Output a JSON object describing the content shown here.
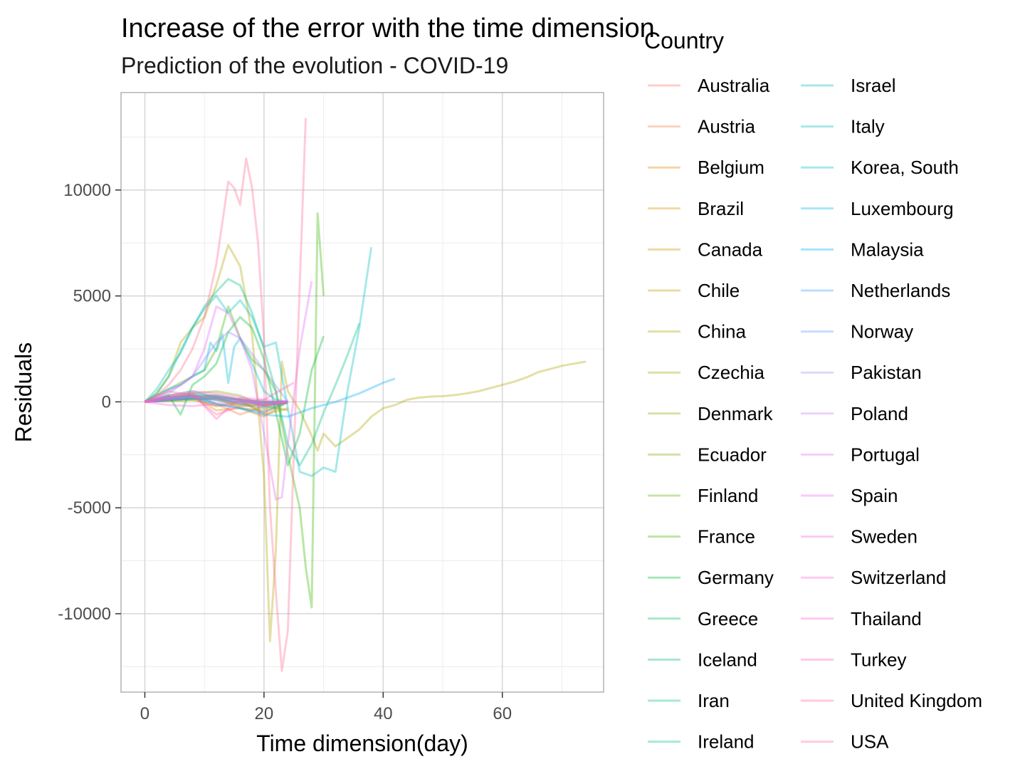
{
  "chart_data": {
    "type": "line",
    "title": "Increase of the error with the time dimension",
    "subtitle": "Prediction of the evolution - COVID-19",
    "xlabel": "Time dimension(day)",
    "ylabel": "Residuals",
    "xlim": [
      -4,
      77
    ],
    "ylim": [
      -13700,
      14600
    ],
    "x_ticks": [
      0,
      20,
      40,
      60
    ],
    "y_ticks": [
      10000,
      5000,
      0,
      -5000,
      -10000
    ],
    "y_tick_labels": [
      "10000",
      "5000",
      "0",
      "-5000",
      "-10000"
    ],
    "grid": true,
    "legend_title": "Country",
    "legend_position": "right",
    "line_opacity": 0.35,
    "series": [
      {
        "name": "Australia",
        "color": "#F8766D",
        "x": [
          0,
          4,
          8,
          12,
          16,
          20,
          24
        ],
        "y": [
          0,
          100,
          200,
          -200,
          -100,
          0,
          0
        ]
      },
      {
        "name": "Austria",
        "color": "#EF7F49",
        "x": [
          0,
          4,
          8,
          12,
          16,
          20,
          24
        ],
        "y": [
          0,
          300,
          400,
          -100,
          -600,
          -200,
          0
        ]
      },
      {
        "name": "Belgium",
        "color": "#E58700",
        "x": [
          0,
          4,
          8,
          12,
          16,
          20,
          24
        ],
        "y": [
          0,
          200,
          300,
          -400,
          -300,
          -700,
          0
        ]
      },
      {
        "name": "Brazil",
        "color": "#DA8F00",
        "x": [
          0,
          4,
          8,
          12,
          16,
          20,
          24
        ],
        "y": [
          0,
          100,
          200,
          300,
          100,
          -600,
          -300
        ]
      },
      {
        "name": "Canada",
        "color": "#C99800",
        "x": [
          0,
          4,
          8,
          12,
          16,
          20,
          24
        ],
        "y": [
          0,
          150,
          250,
          200,
          -300,
          -400,
          0
        ]
      },
      {
        "name": "Chile",
        "color": "#B79F00",
        "x": [
          0,
          4,
          8,
          12,
          16,
          20,
          24
        ],
        "y": [
          0,
          50,
          100,
          -200,
          0,
          -500,
          0
        ]
      },
      {
        "name": "China",
        "color": "#B2A400",
        "x": [
          0,
          2,
          4,
          6,
          8,
          10,
          12,
          14,
          16,
          18,
          20,
          21,
          22,
          23,
          24,
          26,
          28,
          29,
          30,
          32,
          34,
          36,
          38,
          40,
          42,
          44,
          46,
          48,
          50,
          52,
          54,
          56,
          58,
          60,
          62,
          64,
          66,
          68,
          70,
          72,
          74
        ],
        "y": [
          0,
          400,
          1200,
          2800,
          3500,
          4000,
          5500,
          7400,
          6400,
          3200,
          -3500,
          -11300,
          -7000,
          1900,
          500,
          -400,
          -1600,
          -2300,
          -1500,
          -2100,
          -1700,
          -1300,
          -700,
          -300,
          -150,
          100,
          200,
          250,
          270,
          320,
          400,
          500,
          650,
          800,
          950,
          1150,
          1400,
          1550,
          1700,
          1800,
          1900
        ]
      },
      {
        "name": "Czechia",
        "color": "#A3A500",
        "x": [
          0,
          4,
          8,
          12,
          16,
          20,
          24
        ],
        "y": [
          0,
          100,
          250,
          100,
          -200,
          -100,
          0
        ]
      },
      {
        "name": "Denmark",
        "color": "#8FAA00",
        "x": [
          0,
          4,
          8,
          12,
          16,
          20,
          24
        ],
        "y": [
          0,
          80,
          150,
          200,
          -100,
          -150,
          0
        ]
      },
      {
        "name": "Ecuador",
        "color": "#7CAE00",
        "x": [
          0,
          4,
          8,
          12,
          16,
          20,
          24
        ],
        "y": [
          0,
          200,
          400,
          500,
          300,
          -200,
          -400
        ]
      },
      {
        "name": "Finland",
        "color": "#5EB300",
        "x": [
          0,
          4,
          8,
          12,
          16,
          20,
          24
        ],
        "y": [
          0,
          50,
          100,
          150,
          100,
          0,
          0
        ]
      },
      {
        "name": "France",
        "color": "#39B600",
        "x": [
          0,
          2,
          4,
          6,
          8,
          10,
          12,
          14,
          16,
          18,
          20,
          22,
          24,
          26,
          27,
          28,
          29,
          30
        ],
        "y": [
          0,
          300,
          600,
          900,
          1200,
          1500,
          2500,
          4500,
          3000,
          2000,
          1500,
          500,
          -2500,
          -5000,
          -7800,
          -9700,
          8900,
          5000
        ]
      },
      {
        "name": "Germany",
        "color": "#00BA38",
        "x": [
          0,
          2,
          4,
          6,
          8,
          10,
          12,
          14,
          16,
          18,
          20,
          22,
          24,
          26,
          28,
          30
        ],
        "y": [
          0,
          100,
          300,
          -600,
          800,
          1200,
          1800,
          3300,
          4000,
          3500,
          2000,
          -500,
          -3000,
          -1500,
          1500,
          3100
        ]
      },
      {
        "name": "Greece",
        "color": "#00BC59",
        "x": [
          0,
          4,
          8,
          12,
          16,
          20,
          24
        ],
        "y": [
          0,
          100,
          150,
          200,
          100,
          -200,
          0
        ]
      },
      {
        "name": "Iceland",
        "color": "#00BE71",
        "x": [
          0,
          4,
          8,
          12,
          16,
          20,
          24
        ],
        "y": [
          0,
          200,
          300,
          300,
          100,
          0,
          -50
        ]
      },
      {
        "name": "Iran",
        "color": "#00C086",
        "x": [
          0,
          2,
          4,
          6,
          8,
          10,
          12,
          14,
          16,
          18,
          20,
          22,
          24,
          26,
          28,
          30,
          32,
          34,
          36
        ],
        "y": [
          0,
          400,
          1200,
          2400,
          3500,
          4500,
          5200,
          5800,
          5500,
          4200,
          2500,
          500,
          -2000,
          -3000,
          -2000,
          -500,
          800,
          2200,
          3700
        ]
      },
      {
        "name": "Ireland",
        "color": "#00C19C",
        "x": [
          0,
          4,
          8,
          12,
          16,
          20,
          24
        ],
        "y": [
          0,
          300,
          500,
          200,
          -100,
          -300,
          0
        ]
      },
      {
        "name": "Israel",
        "color": "#00C0AF",
        "x": [
          0,
          4,
          8,
          12,
          16,
          20,
          24
        ],
        "y": [
          0,
          150,
          300,
          250,
          100,
          -100,
          0
        ]
      },
      {
        "name": "Italy",
        "color": "#00BFC4",
        "x": [
          0,
          2,
          4,
          6,
          8,
          10,
          12,
          14,
          16,
          18,
          20,
          22,
          24,
          26,
          28,
          30,
          32,
          34,
          36,
          38
        ],
        "y": [
          0,
          600,
          1500,
          2300,
          3500,
          4400,
          5000,
          4200,
          4800,
          4000,
          2600,
          2800,
          -300,
          -3300,
          -3500,
          -3100,
          -3300,
          500,
          3500,
          7300
        ]
      },
      {
        "name": "Korea, South",
        "color": "#00BBDA",
        "x": [
          0,
          2,
          4,
          6,
          8,
          10,
          11,
          12,
          13,
          14,
          15,
          16,
          18,
          20,
          22,
          24
        ],
        "y": [
          0,
          300,
          600,
          800,
          1200,
          1500,
          2800,
          2400,
          3200,
          900,
          2600,
          3000,
          1800,
          500,
          100,
          0
        ]
      },
      {
        "name": "Luxembourg",
        "color": "#00B7E8",
        "x": [
          0,
          4,
          8,
          12,
          16,
          20,
          24
        ],
        "y": [
          0,
          100,
          150,
          100,
          0,
          -50,
          0
        ]
      },
      {
        "name": "Malaysia",
        "color": "#00B0F6",
        "x": [
          0,
          4,
          8,
          12,
          16,
          20,
          24,
          28,
          32,
          36,
          40,
          42
        ],
        "y": [
          0,
          100,
          200,
          -100,
          -300,
          -600,
          -700,
          -300,
          0,
          400,
          900,
          1100
        ]
      },
      {
        "name": "Netherlands",
        "color": "#35A2FF",
        "x": [
          0,
          4,
          8,
          12,
          16,
          20,
          24
        ],
        "y": [
          0,
          200,
          300,
          -100,
          -300,
          -500,
          0
        ]
      },
      {
        "name": "Norway",
        "color": "#619CFF",
        "x": [
          0,
          4,
          8,
          12,
          16,
          20,
          24
        ],
        "y": [
          0,
          100,
          200,
          100,
          0,
          -100,
          0
        ]
      },
      {
        "name": "Pakistan",
        "color": "#9590FF",
        "x": [
          0,
          4,
          8,
          12,
          14,
          16,
          20,
          24
        ],
        "y": [
          0,
          400,
          1200,
          2800,
          3300,
          3000,
          1500,
          0
        ]
      },
      {
        "name": "Poland",
        "color": "#C77CFF",
        "x": [
          0,
          4,
          8,
          12,
          16,
          20,
          24
        ],
        "y": [
          0,
          150,
          250,
          200,
          100,
          0,
          0
        ]
      },
      {
        "name": "Portugal",
        "color": "#E36EF6",
        "x": [
          0,
          2,
          4,
          6,
          8,
          10,
          12,
          14,
          16,
          18,
          20,
          22,
          23,
          24,
          26,
          28
        ],
        "y": [
          0,
          200,
          500,
          800,
          1200,
          2500,
          4500,
          4200,
          3000,
          1500,
          -1500,
          -4600,
          -4500,
          -2000,
          2500,
          5700
        ]
      },
      {
        "name": "Spain",
        "color": "#EF67EB",
        "x": [
          0,
          4,
          8,
          12,
          16,
          20,
          24
        ],
        "y": [
          0,
          200,
          400,
          300,
          100,
          -200,
          0
        ]
      },
      {
        "name": "Sweden",
        "color": "#F564E3",
        "x": [
          0,
          4,
          8,
          12,
          16,
          20,
          24
        ],
        "y": [
          0,
          100,
          200,
          150,
          0,
          -100,
          0
        ]
      },
      {
        "name": "Switzerland",
        "color": "#F863DF",
        "x": [
          0,
          4,
          8,
          12,
          16,
          20,
          24
        ],
        "y": [
          0,
          -150,
          -200,
          -100,
          0,
          100,
          0
        ]
      },
      {
        "name": "Thailand",
        "color": "#FE61CF",
        "x": [
          0,
          4,
          8,
          12,
          16,
          20,
          25
        ],
        "y": [
          0,
          300,
          500,
          400,
          200,
          100,
          900
        ]
      },
      {
        "name": "Turkey",
        "color": "#FF62BC",
        "x": [
          0,
          4,
          8,
          12,
          16,
          20,
          24
        ],
        "y": [
          0,
          200,
          400,
          -800,
          200,
          -100,
          0
        ]
      },
      {
        "name": "United Kingdom",
        "color": "#FF67A4",
        "x": [
          0,
          4,
          8,
          12,
          16,
          20,
          24
        ],
        "y": [
          0,
          500,
          300,
          -600,
          -200,
          -200,
          0
        ]
      },
      {
        "name": "USA",
        "color": "#FF6C91",
        "x": [
          0,
          2,
          4,
          6,
          8,
          10,
          12,
          14,
          15,
          16,
          17,
          18,
          19,
          20,
          21,
          22,
          23,
          24,
          25,
          26,
          27
        ],
        "y": [
          0,
          300,
          800,
          1500,
          2500,
          4000,
          6500,
          10400,
          10100,
          9300,
          11500,
          10100,
          7500,
          3000,
          -5000,
          -9000,
          -12700,
          -10800,
          -2500,
          5500,
          13400
        ]
      }
    ]
  }
}
